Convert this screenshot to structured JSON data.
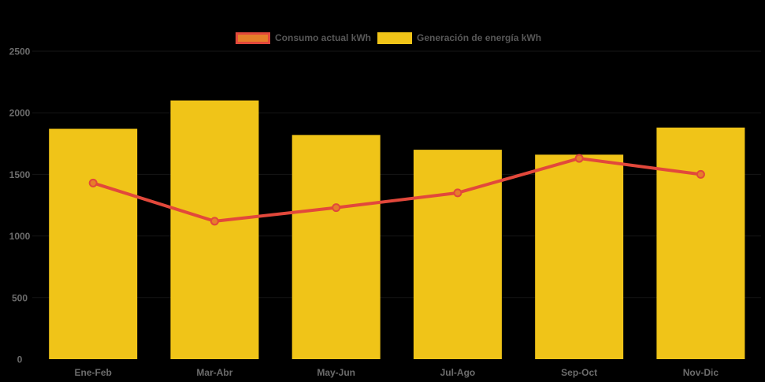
{
  "chart_data": {
    "type": "bar",
    "title": "",
    "categories": [
      "Ene-Feb",
      "Mar-Abr",
      "May-Jun",
      "Jul-Ago",
      "Sep-Oct",
      "Nov-Dic"
    ],
    "series": [
      {
        "name": "Consumo actual kWh",
        "type": "line",
        "values": [
          1430,
          1120,
          1230,
          1350,
          1630,
          1500
        ]
      },
      {
        "name": "Generación de energía kWh",
        "type": "bar",
        "values": [
          1870,
          2100,
          1820,
          1700,
          1660,
          1880
        ]
      }
    ],
    "xlabel": "",
    "ylabel": "",
    "ylim": [
      0,
      2500
    ],
    "yticks": [
      0,
      500,
      1000,
      1500,
      2000,
      2500
    ],
    "legend_position": "top-center",
    "grid": "off",
    "colors": {
      "bar_fill": "#F0C418",
      "line_stroke": "#E2483B",
      "marker_fill": "#E67E29",
      "marker_stroke": "#E2483B",
      "legend_text": "#585858",
      "axis_text": "#6C6C6C",
      "background": "#000000",
      "gridline": "#161616"
    }
  },
  "legend": {
    "items": [
      {
        "label": "Consumo actual kWh"
      },
      {
        "label": "Generación de energía kWh"
      }
    ]
  }
}
